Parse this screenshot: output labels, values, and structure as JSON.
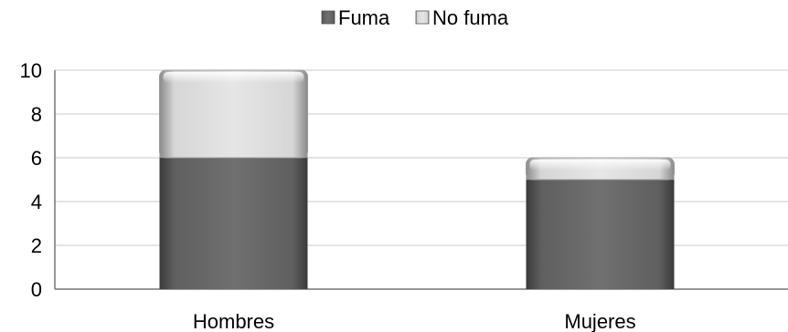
{
  "chart_data": {
    "type": "bar",
    "stacked": true,
    "categories": [
      "Hombres",
      "Mujeres"
    ],
    "series": [
      {
        "name": "Fuma",
        "values": [
          6,
          5
        ],
        "color": "#6e6e6e"
      },
      {
        "name": "No fuma",
        "values": [
          4,
          1
        ],
        "color": "#e3e3e3"
      }
    ],
    "ylim": [
      0,
      10
    ],
    "yticks": [
      0,
      2,
      4,
      6,
      8,
      10
    ],
    "grid": true,
    "legend_position": "top-center"
  }
}
